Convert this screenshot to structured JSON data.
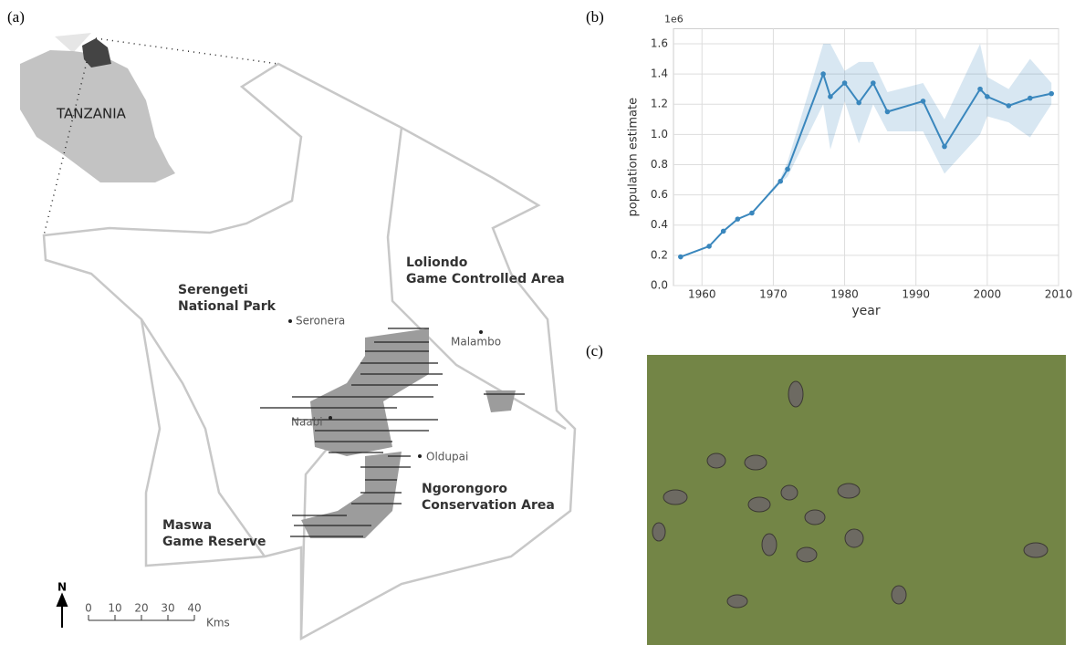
{
  "panels": {
    "a": "(a)",
    "b": "(b)",
    "c": "(c)"
  },
  "map": {
    "inset_label": "TANZANIA",
    "areas": [
      {
        "lines": [
          "Serengeti",
          "National Park"
        ]
      },
      {
        "lines": [
          "Loliondo",
          "Game Controlled Area"
        ]
      },
      {
        "lines": [
          "Ngorongoro",
          "Conservation Area"
        ]
      },
      {
        "lines": [
          "Maswa",
          "Game Reserve"
        ]
      }
    ],
    "places": [
      "Seronera",
      "Malambo",
      "Naabi",
      "Oldupai"
    ],
    "north": "N",
    "scale_ticks": [
      "0",
      "10",
      "20",
      "30",
      "40"
    ],
    "scale_unit": "Kms"
  },
  "chart_data": {
    "type": "line",
    "xlabel": "year",
    "ylabel": "population estimate",
    "y_offset_label": "1e6",
    "x": [
      1957,
      1961,
      1963,
      1965,
      1967,
      1971,
      1972,
      1977,
      1978,
      1980,
      1982,
      1984,
      1986,
      1991,
      1994,
      1999,
      2000,
      2003,
      2006,
      2009
    ],
    "series": [
      {
        "color": "#3a87bd",
        "values": [
          0.19,
          0.26,
          0.36,
          0.44,
          0.48,
          0.69,
          0.77,
          1.4,
          1.25,
          1.34,
          1.21,
          1.34,
          1.15,
          1.22,
          0.92,
          1.3,
          1.25,
          1.19,
          1.24,
          1.27
        ],
        "lower": [
          0.19,
          0.26,
          0.36,
          0.44,
          0.48,
          0.68,
          0.72,
          1.2,
          0.9,
          1.22,
          0.94,
          1.2,
          1.02,
          1.02,
          0.74,
          1.0,
          1.12,
          1.08,
          0.98,
          1.2
        ],
        "upper": [
          0.19,
          0.26,
          0.36,
          0.44,
          0.48,
          0.71,
          0.82,
          1.6,
          1.6,
          1.42,
          1.48,
          1.48,
          1.28,
          1.34,
          1.1,
          1.6,
          1.38,
          1.3,
          1.5,
          1.34
        ]
      }
    ],
    "xlim": [
      1956,
      2010
    ],
    "ylim": [
      0,
      1.7
    ],
    "xticks": [
      1960,
      1970,
      1980,
      1990,
      2000,
      2010
    ],
    "yticks": [
      {
        "value": 0,
        "label": "0.0"
      },
      0.2,
      0.4,
      0.6,
      0.8,
      {
        "value": 1,
        "label": "1.0"
      },
      1.2,
      1.4,
      1.6
    ],
    "grid": true
  }
}
